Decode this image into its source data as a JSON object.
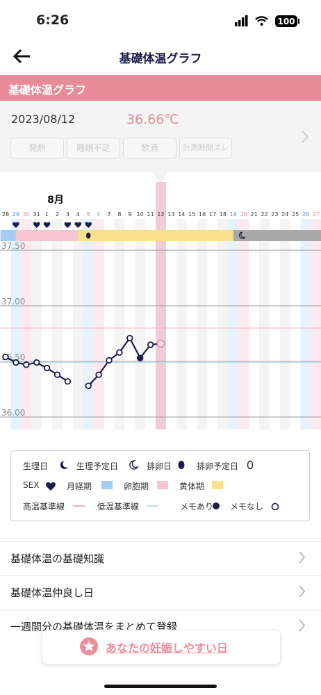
{
  "status": {
    "time": "6:26",
    "battery": "100"
  },
  "nav": {
    "title": "基礎体温グラフ"
  },
  "section_title": "基礎体温グラフ",
  "record": {
    "date": "2023/08/12",
    "temperature": "36.66℃",
    "tags": [
      "発熱",
      "睡眠不足",
      "飲酒",
      "計測時間ズレ"
    ]
  },
  "chart_data": {
    "type": "line",
    "month": "8月",
    "categories": [
      "28",
      "29",
      "30",
      "31",
      "1",
      "2",
      "3",
      "4",
      "5",
      "6",
      "7",
      "8",
      "9",
      "10",
      "11",
      "12",
      "13",
      "14",
      "15",
      "16",
      "17",
      "18",
      "19",
      "20",
      "21",
      "22",
      "23",
      "24",
      "25",
      "26",
      "27"
    ],
    "series": [
      {
        "color": "#1c1c4a",
        "values": [
          36.54,
          36.49,
          36.47,
          36.49,
          36.44,
          36.38,
          36.32,
          null,
          36.28,
          36.38,
          36.51,
          36.58,
          36.71,
          36.53,
          36.65,
          36.66,
          null,
          null,
          null,
          null,
          null,
          null,
          null,
          null,
          null,
          null,
          null,
          null,
          null,
          null,
          null
        ]
      }
    ],
    "ylim": [
      35.9,
      37.6
    ],
    "yticks": [
      {
        "value": 36,
        "label": "36.00"
      },
      {
        "value": 36.5,
        "label": "36.50"
      },
      {
        "value": 37,
        "label": "37.00"
      },
      {
        "value": 37.5,
        "label": "37.50"
      }
    ],
    "grid": true,
    "high_base": 36.8,
    "low_base": 36.49
  },
  "legend": {
    "items": [
      "生理日",
      "生理予定日",
      "排卵日",
      "排卵予定日",
      "SEX",
      "月経期",
      "卵胞期",
      "黄体期",
      "高温基準線",
      "低温基準線",
      "メモあり",
      "メモなし"
    ]
  },
  "menu": [
    "基礎体温の基礎知識",
    "基礎体温仲良し日",
    "一週間分の基礎体温をまとめて登録"
  ],
  "cta": "あなたの妊娠しやすい日"
}
